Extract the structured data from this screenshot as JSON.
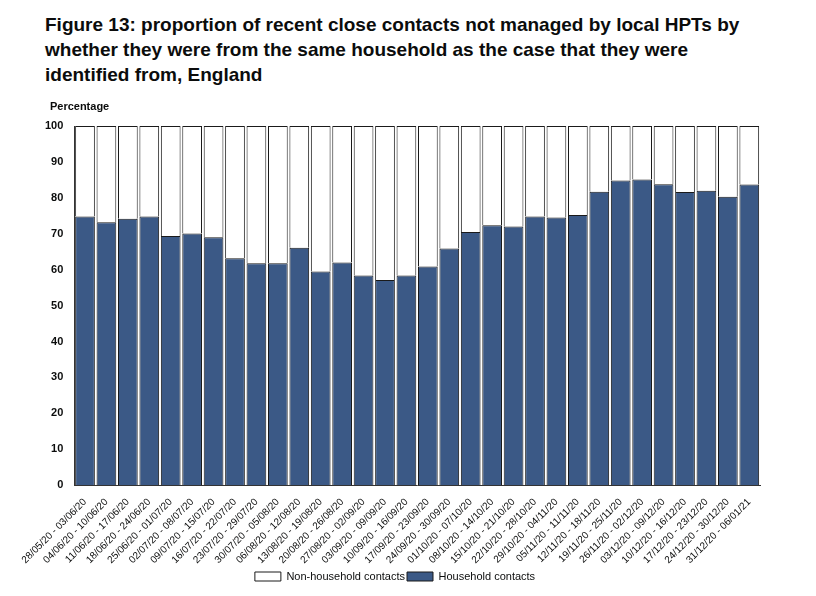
{
  "chart_data": {
    "type": "bar",
    "title": "Figure 13: proportion of recent close contacts not managed by local HPTs by whether they were from the same household as the case that they were identified from, England",
    "ylabel": "Percentage",
    "categories": [
      "28/05/20 - 03/06/20",
      "04/06/20 - 10/06/20",
      "11/06/20 - 17/06/20",
      "18/06/20 - 24/06/20",
      "25/06/20 - 01/07/20",
      "02/07/20 - 08/07/20",
      "09/07/20 - 15/07/20",
      "16/07/20 - 22/07/20",
      "23/07/20 - 29/07/20",
      "30/07/20 - 05/08/20",
      "06/08/20 - 12/08/20",
      "13/08/20 - 19/08/20",
      "20/08/20 - 26/08/20",
      "27/08/20 - 02/09/20",
      "03/09/20 - 09/09/20",
      "10/09/20 - 16/09/20",
      "17/09/20 - 23/09/20",
      "24/09/20 - 30/09/20",
      "01/10/20 - 07/10/20",
      "08/10/20 - 14/10/20",
      "15/10/20 - 21/10/20",
      "22/10/20 - 28/10/20",
      "29/10/20 - 04/11/20",
      "05/11/20 - 11/11/20",
      "12/11/20 - 18/11/20",
      "19/11/20 - 25/11/20",
      "26/11/20 - 02/12/20",
      "03/12/20 - 09/12/20",
      "10/12/20 - 16/12/20",
      "17/12/20 - 23/12/20",
      "24/12/20 - 30/12/20",
      "31/12/20 - 06/01/21"
    ],
    "series": [
      {
        "name": "Household contacts",
        "color": "#3b5986",
        "values": [
          74.8,
          73.2,
          74.2,
          74.8,
          69.4,
          70.1,
          69.0,
          63.2,
          61.8,
          61.8,
          66.1,
          59.5,
          62.0,
          58.4,
          57.1,
          58.4,
          60.9,
          65.9,
          70.5,
          72.4,
          72.0,
          74.8,
          74.5,
          75.2,
          81.7,
          84.8,
          85.1,
          83.8,
          81.6,
          82.0,
          80.3,
          83.7
        ]
      },
      {
        "name": "Non-household contacts",
        "color": "#ffffff",
        "values": [
          25.2,
          26.8,
          25.8,
          25.2,
          30.6,
          29.9,
          31.0,
          36.8,
          38.2,
          38.2,
          33.9,
          40.5,
          38.0,
          41.6,
          42.9,
          41.6,
          39.1,
          34.1,
          29.5,
          27.6,
          28.0,
          25.2,
          25.5,
          24.8,
          18.3,
          15.2,
          14.9,
          16.2,
          18.4,
          18.0,
          19.7,
          16.3
        ]
      }
    ],
    "stacked": true,
    "ylim": [
      0,
      100
    ],
    "yticks": [
      0,
      10,
      20,
      30,
      40,
      50,
      60,
      70,
      80,
      90,
      100
    ],
    "grid": false,
    "legend": "bottom"
  }
}
